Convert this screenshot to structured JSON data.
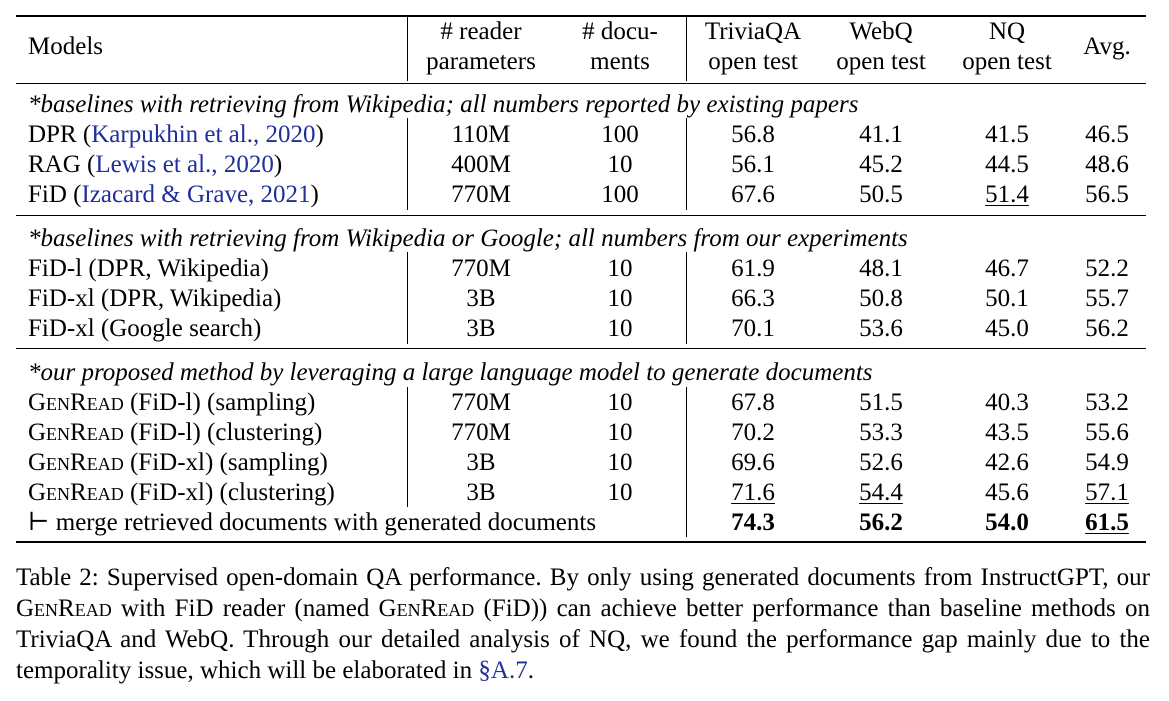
{
  "table": {
    "headers": {
      "models": "Models",
      "reader_params": [
        "# reader",
        "parameters"
      ],
      "num_docs": [
        "# docu-",
        "ments"
      ],
      "triviaqa": [
        "TriviaQA",
        "open test"
      ],
      "webq": [
        "WebQ",
        "open test"
      ],
      "nq": [
        "NQ",
        "open test"
      ],
      "avg": "Avg."
    },
    "sections": [
      {
        "title": "*baselines with retrieving from Wikipedia; all numbers reported by existing papers",
        "rows": [
          {
            "model": "DPR",
            "cite_open": "(",
            "cite_name": "Karpukhin et al.,",
            "cite_year": "2020",
            "cite_close": ")",
            "params": "110M",
            "docs": "100",
            "tqa": "56.8",
            "webq": "41.1",
            "nq": "41.5",
            "avg": "46.5"
          },
          {
            "model": "RAG",
            "cite_open": "(",
            "cite_name": "Lewis et al.,",
            "cite_year": "2020",
            "cite_close": ")",
            "params": "400M",
            "docs": "10",
            "tqa": "56.1",
            "webq": "45.2",
            "nq": "44.5",
            "avg": "48.6"
          },
          {
            "model": "FiD",
            "cite_open": "(",
            "cite_name": "Izacard & Grave,",
            "cite_year": "2021",
            "cite_close": ")",
            "params": "770M",
            "docs": "100",
            "tqa": "67.6",
            "webq": "50.5",
            "nq": "51.4",
            "avg": "56.5"
          }
        ]
      },
      {
        "title": "*baselines with retrieving from Wikipedia or Google; all numbers from our experiments",
        "rows": [
          {
            "model": "FiD-l (DPR, Wikipedia)",
            "params": "770M",
            "docs": "10",
            "tqa": "61.9",
            "webq": "48.1",
            "nq": "46.7",
            "avg": "52.2"
          },
          {
            "model": "FiD-xl (DPR, Wikipedia)",
            "params": "3B",
            "docs": "10",
            "tqa": "66.3",
            "webq": "50.8",
            "nq": "50.1",
            "avg": "55.7"
          },
          {
            "model": "FiD-xl (Google search)",
            "params": "3B",
            "docs": "10",
            "tqa": "70.1",
            "webq": "53.6",
            "nq": "45.0",
            "avg": "56.2"
          }
        ]
      },
      {
        "title": "*our proposed method by leveraging a large language model to generate documents",
        "rows": [
          {
            "model_sc": "GenRead",
            "model_rest": " (FiD-l) (sampling)",
            "params": "770M",
            "docs": "10",
            "tqa": "67.8",
            "webq": "51.5",
            "nq": "40.3",
            "avg": "53.2"
          },
          {
            "model_sc": "GenRead",
            "model_rest": " (FiD-l) (clustering)",
            "params": "770M",
            "docs": "10",
            "tqa": "70.2",
            "webq": "53.3",
            "nq": "43.5",
            "avg": "55.6"
          },
          {
            "model_sc": "GenRead",
            "model_rest": " (FiD-xl) (sampling)",
            "params": "3B",
            "docs": "10",
            "tqa": "69.6",
            "webq": "52.6",
            "nq": "42.6",
            "avg": "54.9"
          },
          {
            "model_sc": "GenRead",
            "model_rest": " (FiD-xl) (clustering)",
            "params": "3B",
            "docs": "10",
            "tqa": "71.6",
            "webq": "54.4",
            "nq": "45.6",
            "avg": "57.1"
          }
        ],
        "merge_row": {
          "label": "⊢ merge retrieved documents with generated documents",
          "tqa": "74.3",
          "webq": "56.2",
          "nq": "54.0",
          "avg": "61.5"
        }
      }
    ]
  },
  "caption": {
    "part1": "Table 2: Supervised open-domain QA performance. By only using generated documents from InstructGPT, our ",
    "sc1": "GenRead",
    "part2": " with FiD reader (named ",
    "sc2": "GenRead",
    "part3": " (FiD)) can achieve better performance than baseline methods on TriviaQA and WebQ. Through our detailed analysis of NQ, we found the performance gap mainly due to the temporality issue, which will be elaborated in ",
    "ref": "§A.7",
    "part4": "."
  }
}
